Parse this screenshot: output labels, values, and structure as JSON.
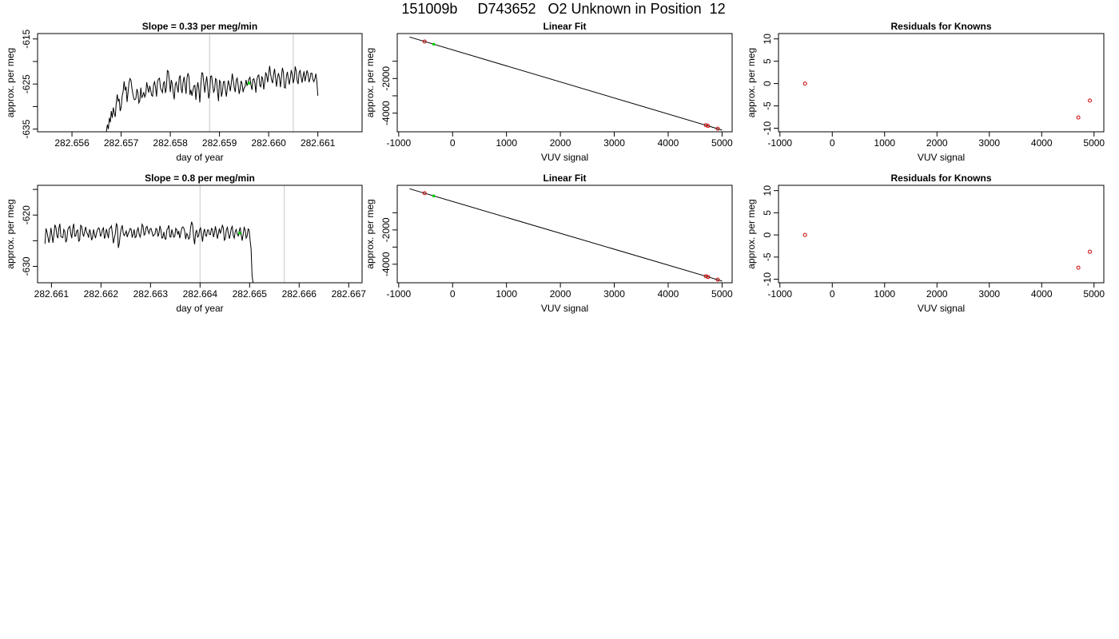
{
  "page_title": "151009b     D743652   O2 Unknown in Position  12",
  "chart_data": [
    {
      "id": "drift1",
      "type": "line",
      "title": "Slope =  0.33  per meg/min",
      "xlabel": "day of year",
      "ylabel": "approx. per meg",
      "xlim": [
        282.6553,
        282.6619
      ],
      "ylim": [
        -635.6,
        -613.8
      ],
      "xticks": [
        282.656,
        282.657,
        282.658,
        282.659,
        282.66,
        282.661
      ],
      "xtick_labels": [
        "282.656",
        "282.657",
        "282.658",
        "282.659",
        "282.660",
        "282.661"
      ],
      "yticks": [
        -635,
        -630,
        -625,
        -620,
        -615
      ],
      "ytick_labels": [
        "-635",
        "",
        "-625",
        "",
        "-615"
      ],
      "vlines": [
        282.6588,
        282.6605
      ],
      "marker": {
        "x": 282.6596,
        "y": -624.8,
        "color": "#00cc00"
      },
      "series": [
        {
          "x0": 282.6567,
          "dx": 2e-05,
          "values": [
            -635.6,
            -634,
            -635,
            -632.5,
            -633.5,
            -631,
            -632.5,
            -630.2,
            -631.5,
            -632.3,
            -629.3,
            -627.3,
            -628.8,
            -628.3,
            -631,
            -630.2,
            -627.7,
            -626.7,
            -624.4,
            -626.4,
            -625.6,
            -629,
            -626.9,
            -624.7,
            -623.8,
            -624.2,
            -626,
            -627.3,
            -628.3,
            -628.5,
            -628.2,
            -626.1,
            -626.9,
            -629.2,
            -628.7,
            -625.8,
            -628,
            -627.6,
            -626.8,
            -627.9,
            -627.3,
            -624.6,
            -625.8,
            -626.9,
            -625.4,
            -626.3,
            -627.5,
            -627.7,
            -625.1,
            -624.5,
            -625.8,
            -627.8,
            -624.4,
            -623.9,
            -623.7,
            -625.9,
            -626.4,
            -626.9,
            -624.8,
            -624.5,
            -627,
            -625.8,
            -622,
            -622.2,
            -624.2,
            -626.8,
            -624.1,
            -625,
            -627,
            -628.4,
            -625.2,
            -624.6,
            -625.7,
            -626.9,
            -623.7,
            -623.1,
            -626,
            -627,
            -624.6,
            -623.4,
            -625.2,
            -627.2,
            -623.6,
            -622.6,
            -623.5,
            -627.4,
            -626.3,
            -627.6,
            -626.4,
            -625.4,
            -625.3,
            -628.5,
            -626.1,
            -624.6,
            -626.1,
            -629.1,
            -625.4,
            -622.5,
            -622.6,
            -624.7,
            -626.9,
            -624.9,
            -623.3,
            -625.5,
            -628.2,
            -627,
            -623.3,
            -623.2,
            -625.1,
            -626.8,
            -626.3,
            -623.8,
            -624.1,
            -626.7,
            -628.8,
            -624.2,
            -624.5,
            -627.8,
            -626.7,
            -624.5,
            -624.4,
            -626.3,
            -627.8,
            -625.8,
            -624.2,
            -625.2,
            -626.6,
            -624.8,
            -622.7,
            -624.2,
            -625.8,
            -626.8,
            -624.2,
            -623.7,
            -625.3,
            -627.2,
            -626.1,
            -624.3,
            -624.9,
            -626.8,
            -625.9,
            -625.6,
            -624.1,
            -625.3,
            -624.7,
            -623.9,
            -623.5,
            -625.2,
            -626.3,
            -624,
            -623.8,
            -624.8,
            -626.9,
            -624.1,
            -623.2,
            -623,
            -625.3,
            -625.6,
            -623.3,
            -623.9,
            -626.2,
            -624.6,
            -622.4,
            -623.1,
            -624.6,
            -622.8,
            -621,
            -622.8,
            -624.1,
            -624.8,
            -622.9,
            -621.6,
            -623.6,
            -625.6,
            -623.6,
            -622.6,
            -623.6,
            -625.7,
            -623.4,
            -621.4,
            -622.4,
            -625.8,
            -625.9,
            -623.4,
            -622.3,
            -623.8,
            -625.1,
            -623.6,
            -621.9,
            -622.9,
            -624.8,
            -623.8,
            -621.1,
            -622.1,
            -624.3,
            -625,
            -622.4,
            -622,
            -623.4,
            -624.7,
            -623.3,
            -622.2,
            -624.4,
            -623.2,
            -622,
            -622.7,
            -624.6,
            -623.9,
            -622.6,
            -622.6,
            -624,
            -624.5,
            -623.8,
            -622.7,
            -624.4,
            -627.6
          ]
        }
      ]
    },
    {
      "id": "fit1",
      "type": "scatter",
      "title": "Linear Fit",
      "xlabel": "VUV signal",
      "ylabel": "approx. per meg",
      "xlim": [
        -1027,
        5187
      ],
      "ylim": [
        -5080,
        600
      ],
      "xticks": [
        -1000,
        0,
        1000,
        2000,
        3000,
        4000,
        5000
      ],
      "xtick_labels": [
        "-1000",
        "0",
        "1000",
        "2000",
        "3000",
        "4000",
        "5000"
      ],
      "yticks": [
        -4000,
        -3000,
        -2000,
        -1000
      ],
      "ytick_labels": [
        "-4000",
        "",
        "-2000",
        ""
      ],
      "fit_line": [
        [
          -800,
          400
        ],
        [
          5000,
          -4980
        ]
      ],
      "points": [
        {
          "x": -520,
          "y": 140,
          "color": "#cc0000",
          "shape": "open"
        },
        {
          "x": 4700,
          "y": -4700,
          "color": "#cc0000",
          "shape": "open"
        },
        {
          "x": 4740,
          "y": -4740,
          "color": "#cc0000",
          "shape": "open"
        },
        {
          "x": 4920,
          "y": -4900,
          "color": "#cc0000",
          "shape": "open"
        }
      ],
      "unknown_points": [
        {
          "x": -350,
          "y": -20,
          "color": "#00cc00",
          "shape": "dot"
        }
      ]
    },
    {
      "id": "resid1",
      "type": "scatter",
      "title": "Residuals for Knowns",
      "xlabel": "VUV signal",
      "ylabel": "approx. per meg",
      "xlim": [
        -1027,
        5187
      ],
      "ylim": [
        -10.8,
        11.2
      ],
      "xticks": [
        -1000,
        0,
        1000,
        2000,
        3000,
        4000,
        5000
      ],
      "xtick_labels": [
        "-1000",
        "0",
        "1000",
        "2000",
        "3000",
        "4000",
        "5000"
      ],
      "yticks": [
        -10,
        -5,
        0,
        5,
        10
      ],
      "ytick_labels": [
        "-10",
        "-5",
        "0",
        "5",
        "10"
      ],
      "points": [
        {
          "x": -520,
          "y": 0,
          "color": "#cc0000",
          "shape": "open"
        },
        {
          "x": 4700,
          "y": -7.6,
          "color": "#cc0000",
          "shape": "open"
        },
        {
          "x": 4920,
          "y": -3.8,
          "color": "#cc0000",
          "shape": "open"
        }
      ]
    },
    {
      "id": "drift2",
      "type": "line",
      "title": "Slope =  0.8  per meg/min",
      "xlabel": "day of year",
      "ylabel": "approx. per meg",
      "xlim": [
        282.66072,
        282.66727
      ],
      "ylim": [
        -633.2,
        -614.2
      ],
      "xticks": [
        282.661,
        282.662,
        282.663,
        282.664,
        282.665,
        282.666,
        282.667
      ],
      "xtick_labels": [
        "282.661",
        "282.662",
        "282.663",
        "282.664",
        "282.665",
        "282.666",
        "282.667"
      ],
      "yticks": [
        -630,
        -625,
        -620,
        -615
      ],
      "ytick_labels": [
        "-630",
        "",
        "-620",
        ""
      ],
      "vlines": [
        282.664,
        282.6657
      ],
      "marker": {
        "x": 282.6648,
        "y": -623.5,
        "color": "#00cc00"
      },
      "series": [
        {
          "x0": 282.66087,
          "dx": 2e-05,
          "values": [
            -625.6,
            -622.6,
            -623.3,
            -624.3,
            -625.4,
            -624.3,
            -622.5,
            -623.9,
            -625.4,
            -623.8,
            -621.9,
            -622.4,
            -624,
            -624.5,
            -622.6,
            -621.7,
            -624.2,
            -624.3,
            -624.4,
            -622.8,
            -623.2,
            -625.3,
            -624.8,
            -622.9,
            -622.4,
            -622.2,
            -623.6,
            -624.5,
            -622.6,
            -621.7,
            -624.1,
            -624.1,
            -623.1,
            -622.9,
            -625.1,
            -624.9,
            -622,
            -622.2,
            -623.5,
            -624.2,
            -623.2,
            -622.3,
            -623.4,
            -623.7,
            -624.4,
            -622.8,
            -623.4,
            -624.9,
            -624.4,
            -622.8,
            -623.8,
            -624.5,
            -623.5,
            -622.9,
            -622.5,
            -622.7,
            -624.2,
            -623.7,
            -622.8,
            -622.5,
            -624.6,
            -624,
            -622.7,
            -623.6,
            -624.5,
            -622.6,
            -622.5,
            -622.1,
            -623.6,
            -625.5,
            -624.5,
            -623.6,
            -621.6,
            -622.2,
            -626.4,
            -625.5,
            -623.7,
            -622.6,
            -622,
            -623.6,
            -624,
            -623.6,
            -623.1,
            -624.3,
            -623.6,
            -623.2,
            -622.6,
            -622.8,
            -624.4,
            -623.7,
            -622.8,
            -624.4,
            -624.2,
            -623,
            -622.5,
            -623.7,
            -624.3,
            -623.4,
            -621.8,
            -622.2,
            -623.9,
            -623.7,
            -622.4,
            -622.2,
            -623.1,
            -623.6,
            -622.7,
            -622.6,
            -623.3,
            -624.1,
            -623.9,
            -623.7,
            -622.6,
            -622.8,
            -624.2,
            -623.6,
            -622.1,
            -622.9,
            -624.5,
            -624.3,
            -623.3,
            -624.6,
            -624.7,
            -622.9,
            -622.6,
            -622,
            -624.2,
            -624.3,
            -622.8,
            -623.6,
            -624.3,
            -624.1,
            -622.6,
            -622.9,
            -623.8,
            -623.1,
            -624.5,
            -623.6,
            -622.6,
            -622.3,
            -622.5,
            -623.2,
            -624.7,
            -623.6,
            -623.9,
            -624.7,
            -624.4,
            -622.3,
            -621.3,
            -622,
            -624.3,
            -625.7,
            -623.5,
            -622.9,
            -624.3,
            -624.1,
            -622.9,
            -622.5,
            -623.8,
            -625.2,
            -623.4,
            -622.7,
            -624,
            -624.1,
            -622.9,
            -622.9,
            -623.8,
            -623.8,
            -622.6,
            -622.8,
            -624.3,
            -623.5,
            -622.2,
            -623.3,
            -624.6,
            -623.6,
            -622.6,
            -623.6,
            -622.9,
            -622,
            -622.5,
            -624.9,
            -624.6,
            -622.9,
            -622.4,
            -623.5,
            -624.6,
            -623.8,
            -622.6,
            -622.2,
            -624,
            -624.5,
            -623.2,
            -622.8,
            -623.7,
            -624.1,
            -623.1,
            -622.4,
            -623.8,
            -625,
            -623.7,
            -622.4,
            -622.9,
            -624.5,
            -624.1,
            -622.7,
            -622.9,
            -624.9,
            -626.6,
            -631.9,
            -633.2
          ]
        }
      ]
    },
    {
      "id": "fit2",
      "type": "scatter",
      "title": "Linear Fit",
      "xlabel": "VUV signal",
      "ylabel": "approx. per meg",
      "xlim": [
        -1027,
        5187
      ],
      "ylim": [
        -5080,
        600
      ],
      "xticks": [
        -1000,
        0,
        1000,
        2000,
        3000,
        4000,
        5000
      ],
      "xtick_labels": [
        "-1000",
        "0",
        "1000",
        "2000",
        "3000",
        "4000",
        "5000"
      ],
      "yticks": [
        -4000,
        -3000,
        -2000,
        -1000
      ],
      "ytick_labels": [
        "-4000",
        "",
        "-2000",
        ""
      ],
      "fit_line": [
        [
          -800,
          400
        ],
        [
          5000,
          -4980
        ]
      ],
      "points": [
        {
          "x": -520,
          "y": 140,
          "color": "#cc0000",
          "shape": "open"
        },
        {
          "x": 4700,
          "y": -4700,
          "color": "#cc0000",
          "shape": "open"
        },
        {
          "x": 4740,
          "y": -4740,
          "color": "#cc0000",
          "shape": "open"
        },
        {
          "x": 4920,
          "y": -4900,
          "color": "#cc0000",
          "shape": "open"
        }
      ],
      "unknown_points": [
        {
          "x": -350,
          "y": -20,
          "color": "#00cc00",
          "shape": "dot"
        }
      ]
    },
    {
      "id": "resid2",
      "type": "scatter",
      "title": "Residuals for Knowns",
      "xlabel": "VUV signal",
      "ylabel": "approx. per meg",
      "xlim": [
        -1027,
        5187
      ],
      "ylim": [
        -10.8,
        11.2
      ],
      "xticks": [
        -1000,
        0,
        1000,
        2000,
        3000,
        4000,
        5000
      ],
      "xtick_labels": [
        "-1000",
        "0",
        "1000",
        "2000",
        "3000",
        "4000",
        "5000"
      ],
      "yticks": [
        -10,
        -5,
        0,
        5,
        10
      ],
      "ytick_labels": [
        "-10",
        "-5",
        "0",
        "5",
        "10"
      ],
      "points": [
        {
          "x": -520,
          "y": 0,
          "color": "#cc0000",
          "shape": "open"
        },
        {
          "x": 4700,
          "y": -7.4,
          "color": "#cc0000",
          "shape": "open"
        },
        {
          "x": 4920,
          "y": -3.8,
          "color": "#cc0000",
          "shape": "open"
        }
      ]
    }
  ]
}
